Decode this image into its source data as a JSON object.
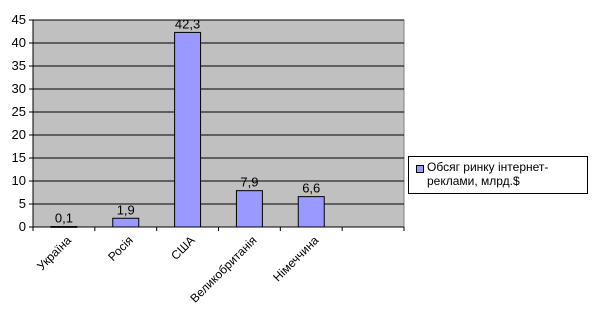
{
  "chart_data": {
    "type": "bar",
    "categories": [
      "Україна",
      "Росія",
      "США",
      "Великобританія",
      "Німеччина",
      ""
    ],
    "series": [
      {
        "name": "Обсяг ринку інтернет-реклами, млрд.$",
        "values": [
          0.1,
          1.9,
          42.3,
          7.9,
          6.6,
          null
        ]
      }
    ],
    "data_labels": [
      "0,1",
      "1,9",
      "42,3",
      "7,9",
      "6,6"
    ],
    "ylim": [
      0,
      45
    ],
    "yticks": [
      0,
      5,
      10,
      15,
      20,
      25,
      30,
      35,
      40,
      45
    ],
    "grid": true,
    "legend_position": "right",
    "colors": {
      "bar": "#9999ff",
      "plot_bg": "#c0c0c0",
      "grid": "#000000"
    }
  }
}
